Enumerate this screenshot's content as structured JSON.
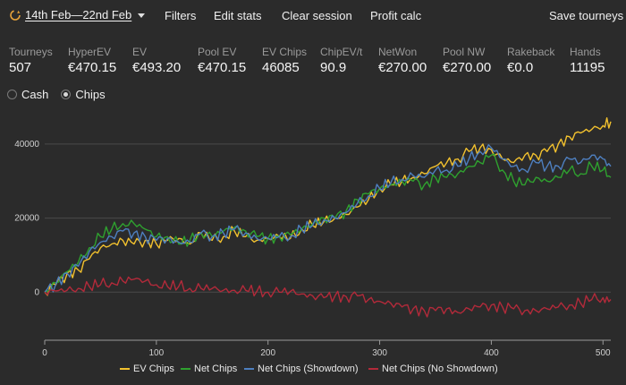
{
  "toolbar": {
    "date_range": "14th Feb—22nd Feb",
    "filters": "Filters",
    "edit_stats": "Edit stats",
    "clear_session": "Clear session",
    "profit_calc": "Profit calc",
    "save_tourneys": "Save tourneys"
  },
  "stats": [
    {
      "label": "Tourneys",
      "value": "507"
    },
    {
      "label": "HyperEV",
      "value": "€470.15"
    },
    {
      "label": "EV",
      "value": "€493.20"
    },
    {
      "label": "Pool EV",
      "value": "€470.15"
    },
    {
      "label": "EV Chips",
      "value": "46085"
    },
    {
      "label": "ChipEV/t",
      "value": "90.9"
    },
    {
      "label": "NetWon",
      "value": "€270.00"
    },
    {
      "label": "Pool NW",
      "value": "€270.00"
    },
    {
      "label": "Rakeback",
      "value": "€0.0"
    },
    {
      "label": "Hands",
      "value": "11195"
    }
  ],
  "mode": {
    "options": [
      "Cash",
      "Chips"
    ],
    "selected": "Chips"
  },
  "colors": {
    "background": "#2b2b2b",
    "grid": "#4a4a4a",
    "ev_chips": "#f2c12e",
    "net_chips": "#2fa12f",
    "net_chips_showdown": "#4e7fbf",
    "net_chips_no_showdown": "#b22a3a"
  },
  "icons": {
    "date_range": "refresh-icon",
    "dropdown": "caret-down-icon"
  },
  "chart_data": {
    "type": "line",
    "xlim": [
      0,
      507
    ],
    "ylim": [
      -13000,
      47000
    ],
    "x_ticks": [
      0,
      100,
      200,
      300,
      400,
      500
    ],
    "y_ticks": [
      0,
      20000,
      40000
    ],
    "grid": "horizontal",
    "legend_position": "bottom",
    "series": [
      {
        "name": "EV Chips",
        "color": "#f2c12e",
        "points": [
          [
            0,
            0
          ],
          [
            10,
            2000
          ],
          [
            20,
            5000
          ],
          [
            30,
            6000
          ],
          [
            40,
            9000
          ],
          [
            50,
            12000
          ],
          [
            60,
            13000
          ],
          [
            70,
            14000
          ],
          [
            80,
            13000
          ],
          [
            90,
            14000
          ],
          [
            100,
            13000
          ],
          [
            110,
            14000
          ],
          [
            120,
            14500
          ],
          [
            130,
            13000
          ],
          [
            140,
            16000
          ],
          [
            150,
            14000
          ],
          [
            160,
            15000
          ],
          [
            170,
            16500
          ],
          [
            180,
            15000
          ],
          [
            190,
            14000
          ],
          [
            200,
            14500
          ],
          [
            210,
            15000
          ],
          [
            220,
            14500
          ],
          [
            230,
            17000
          ],
          [
            240,
            18000
          ],
          [
            250,
            19000
          ],
          [
            260,
            20000
          ],
          [
            270,
            21000
          ],
          [
            280,
            23000
          ],
          [
            290,
            25000
          ],
          [
            300,
            28000
          ],
          [
            310,
            29000
          ],
          [
            320,
            30000
          ],
          [
            330,
            31000
          ],
          [
            340,
            32000
          ],
          [
            350,
            34000
          ],
          [
            360,
            35000
          ],
          [
            370,
            36000
          ],
          [
            380,
            38000
          ],
          [
            390,
            39000
          ],
          [
            400,
            38500
          ],
          [
            410,
            36000
          ],
          [
            420,
            35000
          ],
          [
            430,
            37000
          ],
          [
            440,
            37000
          ],
          [
            450,
            38000
          ],
          [
            460,
            40000
          ],
          [
            470,
            42000
          ],
          [
            480,
            43000
          ],
          [
            490,
            44000
          ],
          [
            500,
            45000
          ],
          [
            507,
            46085
          ]
        ]
      },
      {
        "name": "Net Chips",
        "color": "#2fa12f",
        "points": [
          [
            0,
            0
          ],
          [
            10,
            2500
          ],
          [
            20,
            5500
          ],
          [
            30,
            8000
          ],
          [
            40,
            12000
          ],
          [
            50,
            15000
          ],
          [
            60,
            17000
          ],
          [
            70,
            18500
          ],
          [
            80,
            18500
          ],
          [
            90,
            17000
          ],
          [
            100,
            15000
          ],
          [
            110,
            15000
          ],
          [
            120,
            13000
          ],
          [
            130,
            14000
          ],
          [
            140,
            16000
          ],
          [
            150,
            15000
          ],
          [
            160,
            16500
          ],
          [
            170,
            17500
          ],
          [
            180,
            16500
          ],
          [
            190,
            15000
          ],
          [
            200,
            14500
          ],
          [
            210,
            15000
          ],
          [
            220,
            15500
          ],
          [
            230,
            17000
          ],
          [
            240,
            18500
          ],
          [
            250,
            20000
          ],
          [
            260,
            20000
          ],
          [
            270,
            22000
          ],
          [
            280,
            25000
          ],
          [
            290,
            26500
          ],
          [
            300,
            28000
          ],
          [
            310,
            29000
          ],
          [
            320,
            30000
          ],
          [
            330,
            30000
          ],
          [
            340,
            29000
          ],
          [
            350,
            31000
          ],
          [
            360,
            31000
          ],
          [
            370,
            32000
          ],
          [
            380,
            34000
          ],
          [
            390,
            35000
          ],
          [
            400,
            37000
          ],
          [
            410,
            33000
          ],
          [
            420,
            30000
          ],
          [
            430,
            29000
          ],
          [
            440,
            31000
          ],
          [
            450,
            30000
          ],
          [
            460,
            31000
          ],
          [
            470,
            33000
          ],
          [
            480,
            32000
          ],
          [
            490,
            34000
          ],
          [
            500,
            33000
          ],
          [
            507,
            31000
          ]
        ]
      },
      {
        "name": "Net Chips (Showdown)",
        "color": "#4e7fbf",
        "points": [
          [
            0,
            0
          ],
          [
            10,
            2200
          ],
          [
            20,
            5200
          ],
          [
            30,
            7000
          ],
          [
            40,
            11000
          ],
          [
            50,
            13500
          ],
          [
            60,
            15000
          ],
          [
            70,
            16500
          ],
          [
            80,
            16000
          ],
          [
            90,
            15000
          ],
          [
            100,
            14000
          ],
          [
            110,
            14500
          ],
          [
            120,
            13500
          ],
          [
            130,
            13500
          ],
          [
            140,
            16000
          ],
          [
            150,
            15000
          ],
          [
            160,
            16000
          ],
          [
            170,
            17000
          ],
          [
            180,
            16000
          ],
          [
            190,
            14500
          ],
          [
            200,
            14500
          ],
          [
            210,
            15000
          ],
          [
            220,
            15000
          ],
          [
            230,
            17000
          ],
          [
            240,
            18000
          ],
          [
            250,
            19500
          ],
          [
            260,
            20000
          ],
          [
            270,
            21500
          ],
          [
            280,
            24000
          ],
          [
            290,
            26000
          ],
          [
            300,
            28000
          ],
          [
            310,
            29500
          ],
          [
            320,
            30500
          ],
          [
            330,
            31500
          ],
          [
            340,
            31000
          ],
          [
            350,
            33000
          ],
          [
            360,
            33000
          ],
          [
            370,
            34000
          ],
          [
            380,
            36000
          ],
          [
            390,
            38000
          ],
          [
            400,
            39000
          ],
          [
            410,
            36000
          ],
          [
            420,
            34000
          ],
          [
            430,
            33000
          ],
          [
            440,
            35000
          ],
          [
            450,
            34000
          ],
          [
            460,
            34000
          ],
          [
            470,
            36000
          ],
          [
            480,
            35000
          ],
          [
            490,
            37000
          ],
          [
            500,
            36000
          ],
          [
            507,
            34000
          ]
        ]
      },
      {
        "name": "Net Chips (No Showdown)",
        "color": "#b22a3a",
        "points": [
          [
            0,
            0
          ],
          [
            10,
            300
          ],
          [
            20,
            500
          ],
          [
            30,
            1000
          ],
          [
            40,
            1500
          ],
          [
            50,
            2000
          ],
          [
            60,
            2500
          ],
          [
            70,
            3000
          ],
          [
            80,
            3500
          ],
          [
            90,
            3000
          ],
          [
            100,
            2000
          ],
          [
            110,
            1500
          ],
          [
            120,
            1500
          ],
          [
            130,
            1000
          ],
          [
            140,
            1000
          ],
          [
            150,
            1000
          ],
          [
            160,
            500
          ],
          [
            170,
            500
          ],
          [
            180,
            500
          ],
          [
            190,
            200
          ],
          [
            200,
            0
          ],
          [
            210,
            0
          ],
          [
            220,
            200
          ],
          [
            230,
            -500
          ],
          [
            240,
            -1000
          ],
          [
            250,
            -1500
          ],
          [
            260,
            -1000
          ],
          [
            270,
            -1200
          ],
          [
            280,
            -1000
          ],
          [
            290,
            -2000
          ],
          [
            300,
            -2500
          ],
          [
            310,
            -3000
          ],
          [
            320,
            -4000
          ],
          [
            330,
            -4500
          ],
          [
            340,
            -5000
          ],
          [
            350,
            -5000
          ],
          [
            360,
            -4500
          ],
          [
            370,
            -5500
          ],
          [
            380,
            -4500
          ],
          [
            390,
            -4000
          ],
          [
            400,
            -3500
          ],
          [
            410,
            -4000
          ],
          [
            420,
            -4500
          ],
          [
            430,
            -5000
          ],
          [
            440,
            -5000
          ],
          [
            450,
            -4500
          ],
          [
            460,
            -4000
          ],
          [
            470,
            -3500
          ],
          [
            480,
            -3000
          ],
          [
            490,
            -2000
          ],
          [
            500,
            -1500
          ],
          [
            507,
            -2000
          ]
        ]
      }
    ]
  }
}
